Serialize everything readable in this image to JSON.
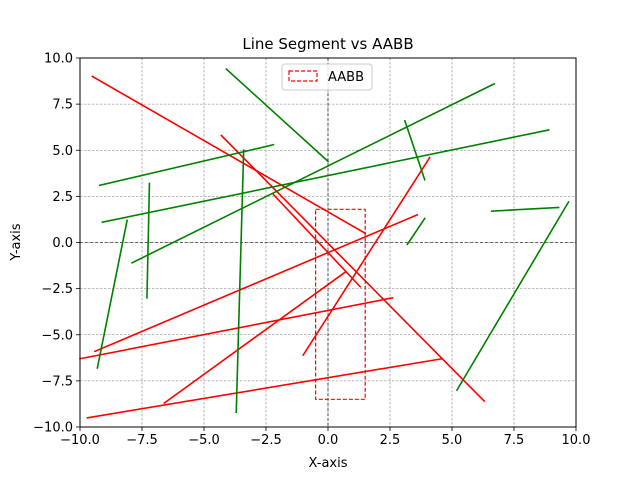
{
  "chart_data": {
    "type": "line",
    "title": "Line Segment vs AABB",
    "xlabel": "X-axis",
    "ylabel": "Y-axis",
    "xlim": [
      -10,
      10
    ],
    "ylim": [
      -10,
      10
    ],
    "xticks": [
      -10,
      -7.5,
      -5,
      -2.5,
      0,
      2.5,
      5,
      7.5,
      10
    ],
    "yticks": [
      -10,
      -7.5,
      -5,
      -2.5,
      0,
      2.5,
      5,
      7.5,
      10
    ],
    "xtick_labels": [
      "−10.0",
      "−7.5",
      "−5.0",
      "−2.5",
      "0.0",
      "2.5",
      "5.0",
      "7.5",
      "10.0"
    ],
    "ytick_labels": [
      "−10.0",
      "−7.5",
      "−5.0",
      "−2.5",
      "0.0",
      "2.5",
      "5.0",
      "7.5",
      "10.0"
    ],
    "grid": true,
    "legend": {
      "position": "top-center",
      "entries": [
        "AABB"
      ]
    },
    "aabb": {
      "name": "AABB",
      "xmin": -0.5,
      "xmax": 1.5,
      "ymin": -8.5,
      "ymax": 1.8,
      "color": "#ff0000",
      "style": "dashed"
    },
    "colors": {
      "intersecting": "#ff0000",
      "non_intersecting": "#008000"
    },
    "segments": [
      {
        "x1": -9.5,
        "y1": 9.0,
        "x2": 1.5,
        "y2": 0.5,
        "color": "#ff0000"
      },
      {
        "x1": -4.3,
        "y1": 5.8,
        "x2": 6.3,
        "y2": -8.6,
        "color": "#ff0000"
      },
      {
        "x1": -2.2,
        "y1": 2.6,
        "x2": 1.3,
        "y2": -2.4,
        "color": "#ff0000"
      },
      {
        "x1": -1.0,
        "y1": -6.1,
        "x2": 4.1,
        "y2": 4.6,
        "color": "#ff0000"
      },
      {
        "x1": -9.4,
        "y1": -5.9,
        "x2": 3.6,
        "y2": 1.5,
        "color": "#ff0000"
      },
      {
        "x1": -10.0,
        "y1": -6.3,
        "x2": 2.6,
        "y2": -3.0,
        "color": "#ff0000"
      },
      {
        "x1": -6.6,
        "y1": -8.7,
        "x2": 0.7,
        "y2": -1.6,
        "color": "#ff0000"
      },
      {
        "x1": -9.7,
        "y1": -9.5,
        "x2": 4.6,
        "y2": -6.3,
        "color": "#ff0000"
      },
      {
        "x1": -4.1,
        "y1": 9.4,
        "x2": 0.0,
        "y2": 4.4,
        "color": "#008000"
      },
      {
        "x1": -9.2,
        "y1": 3.1,
        "x2": -2.2,
        "y2": 5.3,
        "color": "#008000"
      },
      {
        "x1": -9.1,
        "y1": 1.1,
        "x2": 8.9,
        "y2": 6.1,
        "color": "#008000"
      },
      {
        "x1": -7.9,
        "y1": -1.1,
        "x2": 6.7,
        "y2": 8.6,
        "color": "#008000"
      },
      {
        "x1": -7.2,
        "y1": 3.2,
        "x2": -7.3,
        "y2": -3.0,
        "color": "#008000"
      },
      {
        "x1": -8.1,
        "y1": 1.2,
        "x2": -9.3,
        "y2": -6.8,
        "color": "#008000"
      },
      {
        "x1": -3.4,
        "y1": 5.0,
        "x2": -3.7,
        "y2": -9.2,
        "color": "#008000"
      },
      {
        "x1": 3.1,
        "y1": 6.6,
        "x2": 3.9,
        "y2": 3.4,
        "color": "#008000"
      },
      {
        "x1": 3.2,
        "y1": -0.1,
        "x2": 3.9,
        "y2": 1.3,
        "color": "#008000"
      },
      {
        "x1": 6.6,
        "y1": 1.7,
        "x2": 9.3,
        "y2": 1.9,
        "color": "#008000"
      },
      {
        "x1": 5.2,
        "y1": -8.0,
        "x2": 9.7,
        "y2": 2.2,
        "color": "#008000"
      }
    ]
  }
}
